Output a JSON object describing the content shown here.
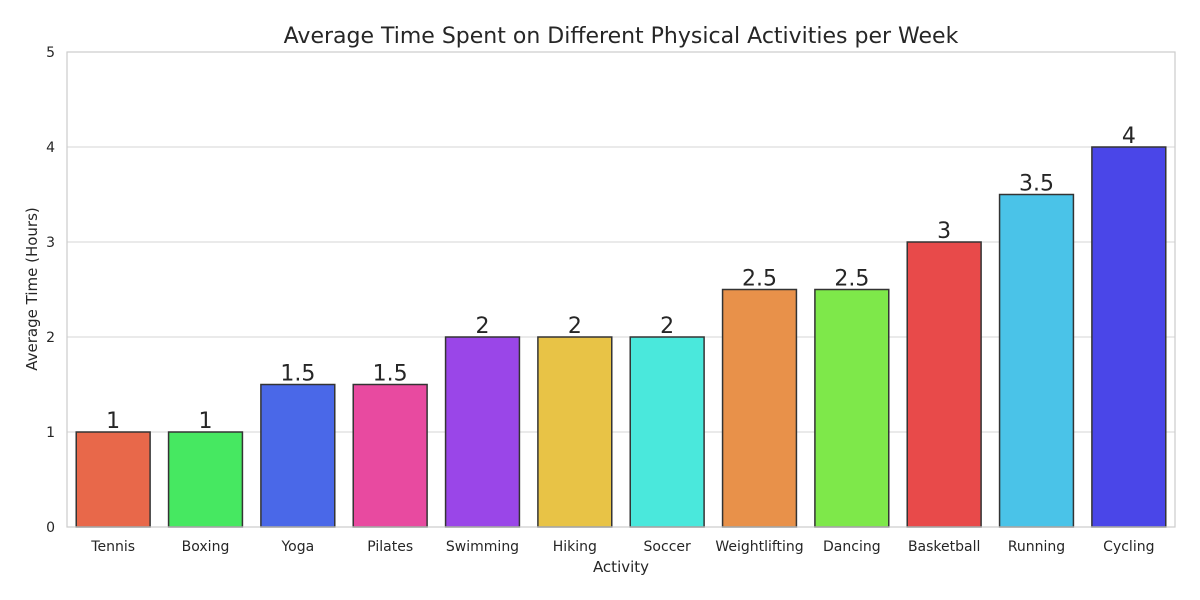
{
  "chart_data": {
    "type": "bar",
    "title": "Average Time Spent on Different Physical Activities per Week",
    "xlabel": "Activity",
    "ylabel": "Average Time (Hours)",
    "ylim": [
      0,
      5
    ],
    "yticks": [
      0,
      1,
      2,
      3,
      4,
      5
    ],
    "grid": true,
    "categories": [
      "Tennis",
      "Boxing",
      "Yoga",
      "Pilates",
      "Swimming",
      "Hiking",
      "Soccer",
      "Weightlifting",
      "Dancing",
      "Basketball",
      "Running",
      "Cycling"
    ],
    "values": [
      1,
      1,
      1.5,
      1.5,
      2,
      2,
      2,
      2.5,
      2.5,
      3,
      3.5,
      4
    ],
    "data_labels": [
      "1",
      "1",
      "1.5",
      "1.5",
      "2",
      "2",
      "2",
      "2.5",
      "2.5",
      "3",
      "3.5",
      "4"
    ],
    "colors": [
      "#e8684a",
      "#46e861",
      "#4a68e8",
      "#e84aa0",
      "#9a46e8",
      "#e8c346",
      "#4ae8dc",
      "#e8914a",
      "#7ee84a",
      "#e84a4a",
      "#4ac3e8",
      "#4a46e8"
    ]
  }
}
